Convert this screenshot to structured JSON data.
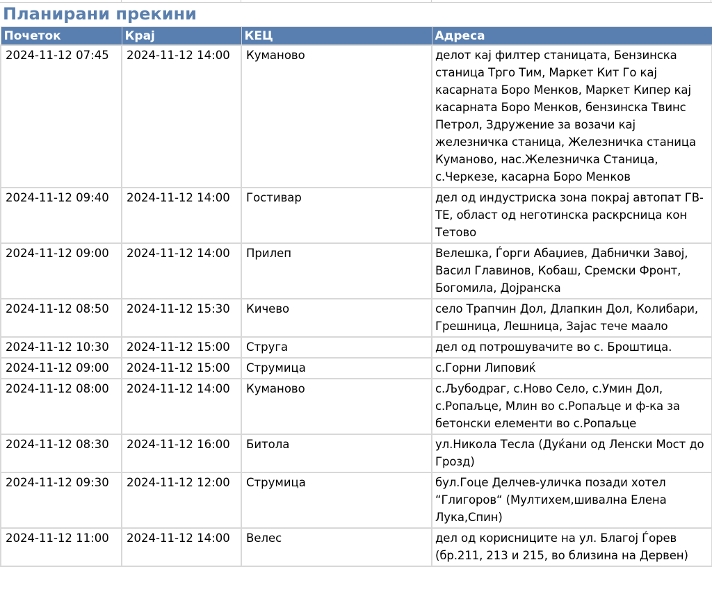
{
  "title": "Планирани прекини",
  "columns": [
    "Почеток",
    "Крај",
    "КЕЦ",
    "Адреса"
  ],
  "colors": {
    "title": "#5a7fad",
    "header_bg": "#587fb0",
    "header_text": "#ffffff",
    "grid": "#d8d8d8"
  },
  "rows": [
    {
      "start": "2024-11-12 07:45",
      "end": "2024-11-12 14:00",
      "kec": "Куманово",
      "address": "делот кај филтер станицата, Бензинска станица Трго Тим, Маркет Кит Го кај касарната Боро Менков, Маркет Кипер кај касарната Боро Менков, бензинска Твинс Петрол, Здружение за возачи кај железничка станица, Железничка станица Куманово, нас.Железничка Станица, с.Черкезе, касарна Боро Менков"
    },
    {
      "start": "2024-11-12 09:40",
      "end": "2024-11-12 14:00",
      "kec": "Гостивар",
      "address": "дел од индустриска зона покрај автопат ГВ-ТЕ, област од неготинска раскрсница кон Тетово"
    },
    {
      "start": "2024-11-12 09:00",
      "end": "2024-11-12 14:00",
      "kec": "Прилеп",
      "address": "Велешка, Ѓорги Абаџиев, Дабнички Завој, Васил Главинов, Кобаш, Сремски Фронт, Богомила, Дојранска"
    },
    {
      "start": "2024-11-12 08:50",
      "end": "2024-11-12 15:30",
      "kec": "Кичево",
      "address": "село Трапчин Дол, Длапкин Дол, Колибари, Грешница, Лешница, Зајас тече маало"
    },
    {
      "start": "2024-11-12 10:30",
      "end": "2024-11-12 15:00",
      "kec": "Струга",
      "address": "дел од потрошувачите во с. Броштица."
    },
    {
      "start": "2024-11-12 09:00",
      "end": "2024-11-12 15:00",
      "kec": "Струмица",
      "address": "с.Горни Липовиќ"
    },
    {
      "start": "2024-11-12 08:00",
      "end": "2024-11-12 14:00",
      "kec": "Куманово",
      "address": "с.Љубодраг, с.Ново Село, с.Умин Дол, с.Ропаљце, Млин во с.Ропаљце и ф-ка за бетонски елементи во с.Ропаљце"
    },
    {
      "start": "2024-11-12 08:30",
      "end": "2024-11-12 16:00",
      "kec": "Битола",
      "address": "ул.Никола Тесла (Дуќани од Ленски Мост до Грозд)"
    },
    {
      "start": "2024-11-12 09:30",
      "end": "2024-11-12 12:00",
      "kec": "Струмица",
      "address": "бул.Гоце Делчев-уличка позади хотел “Глигоров“ (Мултихем,шивална Елена Лука,Спин)"
    },
    {
      "start": "2024-11-12 11:00",
      "end": "2024-11-12 14:00",
      "kec": "Велес",
      "address": "дел од корисниците на ул. Благој Ѓорев (бр.211, 213 и 215,  во близина на Дервен)"
    }
  ]
}
